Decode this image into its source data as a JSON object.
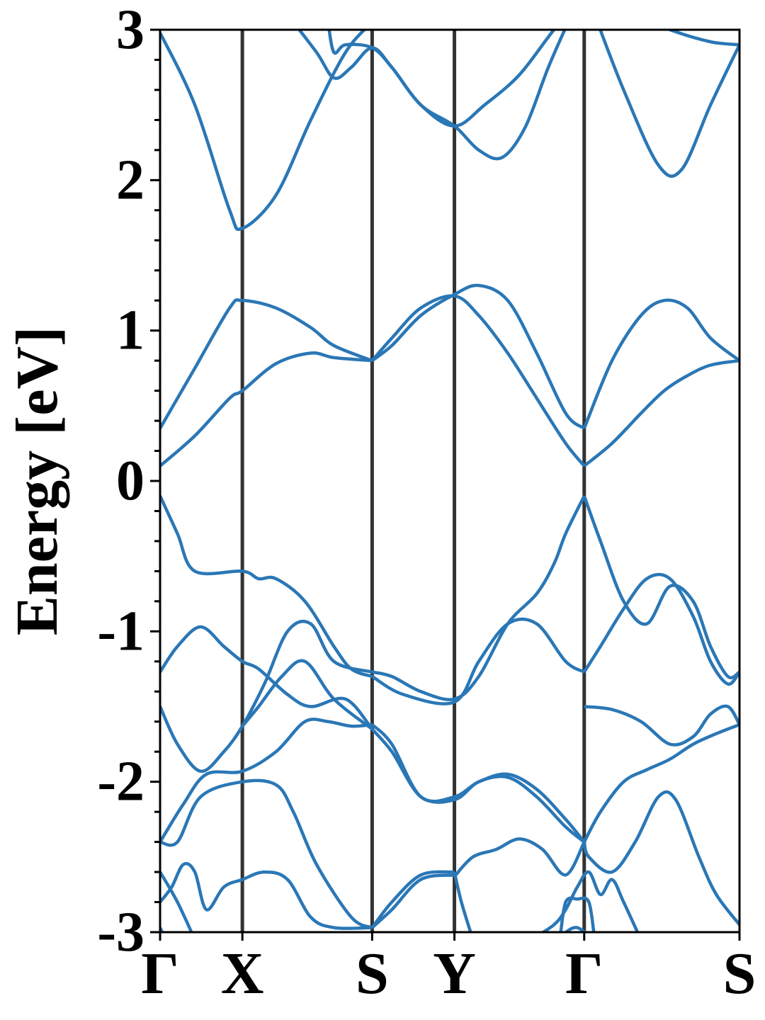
{
  "chart_data": {
    "type": "line",
    "title": "",
    "xlabel": "",
    "ylabel": "Energy [eV]",
    "ylim": [
      -3,
      3
    ],
    "yticks": [
      -3,
      -2,
      -1,
      0,
      1,
      2,
      3
    ],
    "ytick_labels": [
      "-3",
      "-2",
      "-1",
      "0",
      "1",
      "2",
      "3"
    ],
    "k_path": [
      {
        "label": "Γ",
        "k": 0.0
      },
      {
        "label": "X",
        "k": 0.142
      },
      {
        "label": "S",
        "k": 0.366
      },
      {
        "label": "Y",
        "k": 0.508
      },
      {
        "label": "Γ",
        "k": 0.732
      },
      {
        "label": "S",
        "k": 1.0
      }
    ],
    "grid": false,
    "colors": {
      "band": "#2a77b6",
      "vline": "#333333",
      "axis": "#000000"
    },
    "series": [
      {
        "x": [
          0,
          0.06,
          0.12,
          0.142,
          0.2,
          0.26,
          0.32,
          0.366
        ],
        "values": [
          2.98,
          2.5,
          1.8,
          1.68,
          1.9,
          2.4,
          2.85,
          3.05
        ]
      },
      {
        "x": [
          0.22,
          0.27,
          0.3,
          0.33,
          0.366,
          0.4,
          0.45,
          0.508,
          0.56,
          0.62,
          0.68,
          0.71
        ],
        "values": [
          3.1,
          2.85,
          2.68,
          2.75,
          2.88,
          2.75,
          2.5,
          2.36,
          2.5,
          2.7,
          3.0,
          3.1
        ]
      },
      {
        "x": [
          0.29,
          0.3,
          0.32,
          0.366,
          0.4,
          0.45,
          0.508,
          0.55,
          0.59,
          0.63,
          0.67,
          0.71
        ],
        "values": [
          3.05,
          2.85,
          2.9,
          2.88,
          2.75,
          2.5,
          2.36,
          2.2,
          2.15,
          2.35,
          2.75,
          3.1
        ]
      },
      {
        "x": [
          0.75,
          0.8,
          0.86,
          0.9,
          0.95,
          1.0
        ],
        "values": [
          3.1,
          2.6,
          2.1,
          2.07,
          2.5,
          2.9
        ]
      },
      {
        "x": [
          0.82,
          0.88,
          0.95,
          1.0
        ],
        "values": [
          3.1,
          3.0,
          2.92,
          2.9
        ]
      },
      {
        "x": [
          0,
          0.06,
          0.12,
          0.142,
          0.2,
          0.26,
          0.3,
          0.366
        ],
        "values": [
          0.35,
          0.75,
          1.15,
          1.2,
          1.15,
          1.02,
          0.9,
          0.8
        ]
      },
      {
        "x": [
          0,
          0.06,
          0.12,
          0.142,
          0.2,
          0.26,
          0.3,
          0.366
        ],
        "values": [
          0.1,
          0.3,
          0.55,
          0.6,
          0.78,
          0.85,
          0.82,
          0.8
        ]
      },
      {
        "x": [
          0.366,
          0.4,
          0.45,
          0.508,
          0.55,
          0.6,
          0.65,
          0.7,
          0.732
        ],
        "values": [
          0.8,
          0.9,
          1.1,
          1.24,
          1.3,
          1.2,
          0.85,
          0.45,
          0.35
        ]
      },
      {
        "x": [
          0.366,
          0.4,
          0.45,
          0.508,
          0.55,
          0.6,
          0.65,
          0.7,
          0.732
        ],
        "values": [
          0.8,
          0.95,
          1.15,
          1.23,
          1.1,
          0.85,
          0.55,
          0.25,
          0.1
        ]
      },
      {
        "x": [
          0.732,
          0.78,
          0.83,
          0.87,
          0.91,
          0.95,
          1.0
        ],
        "values": [
          0.35,
          0.8,
          1.1,
          1.2,
          1.15,
          0.95,
          0.8
        ]
      },
      {
        "x": [
          0.732,
          0.78,
          0.83,
          0.87,
          0.91,
          0.95,
          1.0
        ],
        "values": [
          0.1,
          0.25,
          0.45,
          0.6,
          0.7,
          0.77,
          0.8
        ]
      },
      {
        "x": [
          0,
          0.03,
          0.06,
          0.142,
          0.17,
          0.2,
          0.25,
          0.3,
          0.33,
          0.366
        ],
        "values": [
          -0.1,
          -0.35,
          -0.6,
          -0.6,
          -0.65,
          -0.65,
          -0.8,
          -1.1,
          -1.25,
          -1.3
        ]
      },
      {
        "x": [
          0,
          0.03,
          0.07,
          0.11,
          0.142,
          0.17,
          0.22,
          0.26,
          0.32,
          0.366
        ],
        "values": [
          -1.27,
          -1.1,
          -0.97,
          -1.1,
          -1.2,
          -1.25,
          -1.42,
          -1.5,
          -1.45,
          -1.65
        ]
      },
      {
        "x": [
          0,
          0.03,
          0.07,
          0.11,
          0.142,
          0.18,
          0.22,
          0.26,
          0.3,
          0.366
        ],
        "values": [
          -1.5,
          -1.75,
          -1.93,
          -1.8,
          -1.63,
          -1.35,
          -1.0,
          -0.95,
          -1.2,
          -1.27
        ]
      },
      {
        "x": [
          0.142,
          0.17,
          0.21,
          0.25,
          0.3,
          0.366
        ],
        "values": [
          -1.63,
          -1.5,
          -1.3,
          -1.2,
          -1.45,
          -1.65
        ]
      },
      {
        "x": [
          0.366,
          0.4,
          0.45,
          0.508,
          0.55,
          0.6,
          0.65,
          0.68,
          0.7,
          0.732
        ],
        "values": [
          -1.27,
          -1.3,
          -1.4,
          -1.45,
          -1.3,
          -0.95,
          -0.75,
          -0.55,
          -0.35,
          -0.1
        ]
      },
      {
        "x": [
          0.366,
          0.42,
          0.508,
          0.55,
          0.6,
          0.65,
          0.7,
          0.732
        ],
        "values": [
          -1.3,
          -1.42,
          -1.47,
          -1.2,
          -0.95,
          -0.95,
          -1.2,
          -1.27
        ]
      },
      {
        "x": [
          0.732,
          0.76,
          0.8,
          0.84,
          0.88,
          0.92,
          0.95,
          0.98,
          1.0
        ],
        "values": [
          -0.1,
          -0.4,
          -0.8,
          -0.95,
          -0.7,
          -0.8,
          -1.1,
          -1.3,
          -1.27
        ]
      },
      {
        "x": [
          0.732,
          0.76,
          0.8,
          0.84,
          0.88,
          0.92,
          0.95,
          0.98,
          1.0
        ],
        "values": [
          -1.27,
          -1.1,
          -0.85,
          -0.65,
          -0.65,
          -0.9,
          -1.2,
          -1.35,
          -1.27
        ]
      },
      {
        "x": [
          0,
          0.04,
          0.08,
          0.142,
          0.2,
          0.25,
          0.29,
          0.33,
          0.366
        ],
        "values": [
          -2.4,
          -2.15,
          -1.95,
          -1.93,
          -1.8,
          -1.6,
          -1.6,
          -1.63,
          -1.62
        ]
      },
      {
        "x": [
          0,
          0.03,
          0.07,
          0.142,
          0.2,
          0.23,
          0.27,
          0.33,
          0.366
        ],
        "values": [
          -2.4,
          -2.4,
          -2.1,
          -2.0,
          -2.02,
          -2.2,
          -2.55,
          -2.9,
          -2.97
        ]
      },
      {
        "x": [
          0.366,
          0.4,
          0.45,
          0.508,
          0.55,
          0.6,
          0.65,
          0.7,
          0.732
        ],
        "values": [
          -1.62,
          -1.75,
          -2.1,
          -2.1,
          -2.0,
          -1.95,
          -2.05,
          -2.25,
          -2.4
        ]
      },
      {
        "x": [
          0.366,
          0.4,
          0.45,
          0.508,
          0.55,
          0.6,
          0.65,
          0.7,
          0.732
        ],
        "values": [
          -1.65,
          -1.8,
          -2.1,
          -2.12,
          -2.0,
          -1.97,
          -2.1,
          -2.3,
          -2.4
        ]
      },
      {
        "x": [
          0.732,
          0.78,
          0.83,
          0.88,
          0.92,
          0.95,
          0.98,
          1.0
        ],
        "values": [
          -1.5,
          -1.52,
          -1.6,
          -1.75,
          -1.7,
          -1.55,
          -1.5,
          -1.62
        ]
      },
      {
        "x": [
          0.732,
          0.76,
          0.8,
          0.84,
          0.88,
          0.92,
          0.96,
          1.0
        ],
        "values": [
          -2.4,
          -2.2,
          -2.0,
          -1.92,
          -1.85,
          -1.75,
          -1.68,
          -1.62
        ]
      },
      {
        "x": [
          0.732,
          0.74,
          0.78,
          0.82,
          0.86,
          0.89,
          0.93,
          0.96,
          1.0
        ],
        "values": [
          -2.4,
          -2.5,
          -2.6,
          -2.4,
          -2.1,
          -2.12,
          -2.5,
          -2.75,
          -2.95
        ]
      },
      {
        "x": [
          0.508,
          0.54,
          0.58,
          0.62,
          0.66,
          0.7,
          0.732
        ],
        "values": [
          -2.63,
          -2.5,
          -2.45,
          -2.38,
          -2.45,
          -2.62,
          -2.4
        ]
      },
      {
        "x": [
          0.366,
          0.4,
          0.45,
          0.508
        ],
        "values": [
          -2.97,
          -2.85,
          -2.65,
          -2.62
        ]
      },
      {
        "x": [
          0.366,
          0.4,
          0.45,
          0.508
        ],
        "values": [
          -2.97,
          -2.8,
          -2.62,
          -2.6
        ]
      },
      {
        "x": [
          0,
          0.02,
          0.04,
          0.06,
          0.08,
          0.11,
          0.142,
          0.18,
          0.22,
          0.26,
          0.3,
          0.366
        ],
        "values": [
          -2.8,
          -2.7,
          -2.55,
          -2.6,
          -2.85,
          -2.7,
          -2.65,
          -2.6,
          -2.65,
          -2.9,
          -2.97,
          -2.97
        ]
      },
      {
        "x": [
          0,
          0.03,
          0.06
        ],
        "values": [
          -2.6,
          -2.8,
          -3.05
        ]
      },
      {
        "x": [
          0,
          0.01
        ],
        "values": [
          -2.97,
          -3.05
        ]
      },
      {
        "x": [
          0.508,
          0.52,
          0.54
        ],
        "values": [
          -2.6,
          -2.8,
          -3.05
        ]
      },
      {
        "x": [
          0.64,
          0.68,
          0.7,
          0.72,
          0.74,
          0.76,
          0.78,
          0.8,
          0.83
        ],
        "values": [
          -3.05,
          -2.95,
          -2.85,
          -2.7,
          -2.6,
          -2.75,
          -2.65,
          -2.8,
          -3.05
        ]
      },
      {
        "x": [
          0.69,
          0.7,
          0.72,
          0.74,
          0.75
        ],
        "values": [
          -3.05,
          -2.8,
          -2.78,
          -2.8,
          -3.05
        ]
      },
      {
        "x": [
          0.7,
          0.72,
          0.75
        ],
        "values": [
          -3.0,
          -2.97,
          -3.05
        ]
      }
    ]
  }
}
